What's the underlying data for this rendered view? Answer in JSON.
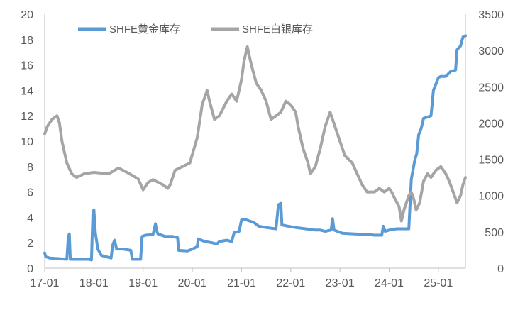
{
  "chart_data": {
    "type": "line",
    "title": "",
    "xlabel": "",
    "ylabel": "",
    "x_tick_labels": [
      "17-01",
      "18-01",
      "19-01",
      "20-01",
      "21-01",
      "22-01",
      "23-01",
      "24-01",
      "25-01"
    ],
    "x_range": [
      2017.0,
      2025.55
    ],
    "y_left": {
      "range": [
        0,
        20
      ],
      "ticks": [
        0,
        2,
        4,
        6,
        8,
        10,
        12,
        14,
        16,
        18,
        20
      ]
    },
    "y_right": {
      "range": [
        0,
        3500
      ],
      "ticks": [
        0,
        500,
        1000,
        1500,
        2000,
        2500,
        3000,
        3500
      ]
    },
    "grid": false,
    "legend_position": "top-left",
    "series": [
      {
        "name": "SHFE黄金库存",
        "axis": "left",
        "color": "#5B9BD5",
        "points": [
          [
            2017.0,
            1.2
          ],
          [
            2017.02,
            0.9
          ],
          [
            2017.1,
            0.8
          ],
          [
            2017.3,
            0.75
          ],
          [
            2017.45,
            0.7
          ],
          [
            2017.48,
            2.5
          ],
          [
            2017.5,
            2.7
          ],
          [
            2017.52,
            0.7
          ],
          [
            2017.6,
            0.7
          ],
          [
            2017.9,
            0.7
          ],
          [
            2017.95,
            0.65
          ],
          [
            2017.98,
            4.4
          ],
          [
            2018.0,
            4.6
          ],
          [
            2018.03,
            2.8
          ],
          [
            2018.08,
            1.5
          ],
          [
            2018.15,
            1.0
          ],
          [
            2018.25,
            0.9
          ],
          [
            2018.35,
            0.8
          ],
          [
            2018.38,
            1.8
          ],
          [
            2018.42,
            2.2
          ],
          [
            2018.46,
            1.5
          ],
          [
            2018.6,
            1.5
          ],
          [
            2018.75,
            1.4
          ],
          [
            2018.78,
            0.7
          ],
          [
            2018.95,
            0.7
          ],
          [
            2018.98,
            2.5
          ],
          [
            2019.05,
            2.6
          ],
          [
            2019.2,
            2.65
          ],
          [
            2019.25,
            3.5
          ],
          [
            2019.28,
            2.9
          ],
          [
            2019.3,
            2.7
          ],
          [
            2019.45,
            2.5
          ],
          [
            2019.6,
            2.5
          ],
          [
            2019.7,
            2.4
          ],
          [
            2019.72,
            1.4
          ],
          [
            2019.9,
            1.35
          ],
          [
            2020.0,
            1.5
          ],
          [
            2020.1,
            1.7
          ],
          [
            2020.12,
            2.3
          ],
          [
            2020.25,
            2.1
          ],
          [
            2020.4,
            2.0
          ],
          [
            2020.5,
            1.9
          ],
          [
            2020.55,
            2.1
          ],
          [
            2020.7,
            2.2
          ],
          [
            2020.8,
            2.1
          ],
          [
            2020.85,
            2.8
          ],
          [
            2020.95,
            2.9
          ],
          [
            2021.0,
            3.8
          ],
          [
            2021.1,
            3.8
          ],
          [
            2021.25,
            3.6
          ],
          [
            2021.35,
            3.3
          ],
          [
            2021.5,
            3.2
          ],
          [
            2021.7,
            3.1
          ],
          [
            2021.75,
            5.0
          ],
          [
            2021.8,
            5.1
          ],
          [
            2021.82,
            3.4
          ],
          [
            2021.95,
            3.3
          ],
          [
            2022.1,
            3.2
          ],
          [
            2022.3,
            3.1
          ],
          [
            2022.5,
            3.0
          ],
          [
            2022.6,
            3.0
          ],
          [
            2022.7,
            2.9
          ],
          [
            2022.82,
            3.0
          ],
          [
            2022.85,
            3.9
          ],
          [
            2022.88,
            3.0
          ],
          [
            2022.95,
            2.9
          ],
          [
            2023.05,
            2.75
          ],
          [
            2023.3,
            2.7
          ],
          [
            2023.6,
            2.65
          ],
          [
            2023.7,
            2.6
          ],
          [
            2023.85,
            2.6
          ],
          [
            2023.88,
            3.3
          ],
          [
            2023.92,
            2.9
          ],
          [
            2024.0,
            3.0
          ],
          [
            2024.15,
            3.1
          ],
          [
            2024.3,
            3.1
          ],
          [
            2024.4,
            3.1
          ],
          [
            2024.45,
            7.0
          ],
          [
            2024.52,
            8.5
          ],
          [
            2024.56,
            9.0
          ],
          [
            2024.6,
            10.5
          ],
          [
            2024.65,
            11.0
          ],
          [
            2024.7,
            11.8
          ],
          [
            2024.78,
            11.9
          ],
          [
            2024.85,
            12.0
          ],
          [
            2024.9,
            14.0
          ],
          [
            2024.95,
            14.5
          ],
          [
            2025.0,
            15.0
          ],
          [
            2025.05,
            15.1
          ],
          [
            2025.15,
            15.1
          ],
          [
            2025.25,
            15.5
          ],
          [
            2025.35,
            15.6
          ],
          [
            2025.38,
            17.2
          ],
          [
            2025.45,
            17.5
          ],
          [
            2025.5,
            18.2
          ],
          [
            2025.55,
            18.3
          ]
        ]
      },
      {
        "name": "SHFE白银库存",
        "axis": "right",
        "color": "#A5A5A5",
        "points": [
          [
            2017.0,
            1850
          ],
          [
            2017.05,
            1950
          ],
          [
            2017.15,
            2050
          ],
          [
            2017.25,
            2100
          ],
          [
            2017.3,
            2000
          ],
          [
            2017.35,
            1750
          ],
          [
            2017.45,
            1450
          ],
          [
            2017.55,
            1300
          ],
          [
            2017.65,
            1250
          ],
          [
            2017.8,
            1300
          ],
          [
            2018.0,
            1320
          ],
          [
            2018.3,
            1300
          ],
          [
            2018.5,
            1380
          ],
          [
            2018.7,
            1310
          ],
          [
            2018.9,
            1230
          ],
          [
            2019.0,
            1080
          ],
          [
            2019.1,
            1180
          ],
          [
            2019.2,
            1220
          ],
          [
            2019.4,
            1150
          ],
          [
            2019.5,
            1100
          ],
          [
            2019.55,
            1150
          ],
          [
            2019.65,
            1350
          ],
          [
            2019.8,
            1400
          ],
          [
            2019.95,
            1450
          ],
          [
            2020.1,
            1800
          ],
          [
            2020.2,
            2250
          ],
          [
            2020.3,
            2450
          ],
          [
            2020.35,
            2300
          ],
          [
            2020.45,
            2050
          ],
          [
            2020.55,
            2100
          ],
          [
            2020.7,
            2300
          ],
          [
            2020.8,
            2400
          ],
          [
            2020.9,
            2300
          ],
          [
            2021.0,
            2600
          ],
          [
            2021.05,
            2850
          ],
          [
            2021.1,
            3000
          ],
          [
            2021.12,
            3050
          ],
          [
            2021.15,
            2950
          ],
          [
            2021.2,
            2800
          ],
          [
            2021.3,
            2550
          ],
          [
            2021.4,
            2450
          ],
          [
            2021.5,
            2300
          ],
          [
            2021.6,
            2050
          ],
          [
            2021.7,
            2100
          ],
          [
            2021.8,
            2150
          ],
          [
            2021.9,
            2300
          ],
          [
            2022.0,
            2250
          ],
          [
            2022.1,
            2150
          ],
          [
            2022.15,
            1950
          ],
          [
            2022.25,
            1650
          ],
          [
            2022.35,
            1450
          ],
          [
            2022.4,
            1300
          ],
          [
            2022.5,
            1400
          ],
          [
            2022.6,
            1650
          ],
          [
            2022.7,
            1950
          ],
          [
            2022.8,
            2150
          ],
          [
            2022.9,
            1950
          ],
          [
            2023.0,
            1750
          ],
          [
            2023.1,
            1550
          ],
          [
            2023.25,
            1450
          ],
          [
            2023.35,
            1300
          ],
          [
            2023.45,
            1150
          ],
          [
            2023.55,
            1050
          ],
          [
            2023.7,
            1050
          ],
          [
            2023.8,
            1100
          ],
          [
            2023.9,
            1050
          ],
          [
            2024.0,
            1100
          ],
          [
            2024.05,
            1050
          ],
          [
            2024.12,
            950
          ],
          [
            2024.2,
            850
          ],
          [
            2024.25,
            650
          ],
          [
            2024.3,
            800
          ],
          [
            2024.4,
            1000
          ],
          [
            2024.45,
            1050
          ],
          [
            2024.5,
            950
          ],
          [
            2024.55,
            800
          ],
          [
            2024.62,
            900
          ],
          [
            2024.7,
            1200
          ],
          [
            2024.78,
            1300
          ],
          [
            2024.85,
            1250
          ],
          [
            2024.95,
            1350
          ],
          [
            2025.05,
            1400
          ],
          [
            2025.15,
            1300
          ],
          [
            2025.22,
            1200
          ],
          [
            2025.3,
            1050
          ],
          [
            2025.38,
            900
          ],
          [
            2025.45,
            1000
          ],
          [
            2025.5,
            1150
          ],
          [
            2025.55,
            1250
          ]
        ]
      }
    ]
  }
}
